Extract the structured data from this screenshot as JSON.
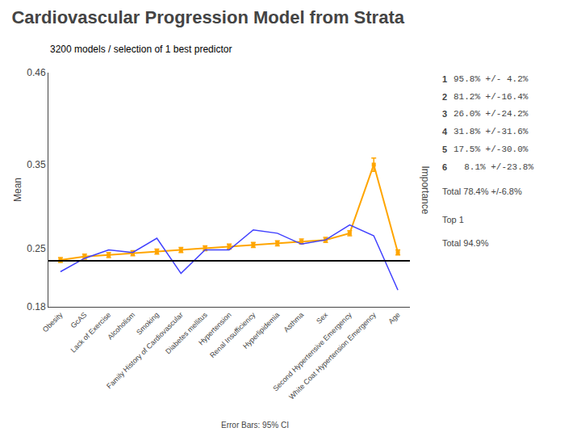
{
  "chart_data": {
    "type": "line",
    "title": "Cardiovascular Progression Model from Strata",
    "subtitle": "3200 models / selection of 1 best predictor",
    "ylabel": "Mean",
    "y2label": "Importance",
    "footnote": "Error Bars: 95% CI",
    "categories": [
      "Obesity",
      "GcAS",
      "Lack of Exercise",
      "Alcoholism",
      "Smoking",
      "Family History of Cardiovascular",
      "Diabetes mellitus",
      "Hypertension",
      "Renal Insufficiency",
      "Hyperlipidemia",
      "Asthma",
      "Sex",
      "Second Hypertensive Emergency",
      "White Coat Hypertension Emergency",
      "Age"
    ],
    "series": [
      {
        "color": "#FFA500",
        "marker": "square",
        "values": [
          0.236,
          0.24,
          0.242,
          0.244,
          0.246,
          0.248,
          0.25,
          0.252,
          0.254,
          0.256,
          0.258,
          0.26,
          0.268,
          0.35,
          0.245
        ],
        "errors": [
          0.003,
          0.003,
          0.003,
          0.003,
          0.003,
          0.003,
          0.003,
          0.003,
          0.003,
          0.003,
          0.003,
          0.003,
          0.003,
          0.008,
          0.003
        ]
      },
      {
        "color": "#4040FF",
        "values": [
          0.222,
          0.238,
          0.248,
          0.245,
          0.262,
          0.22,
          0.248,
          0.248,
          0.272,
          0.268,
          0.255,
          0.26,
          0.278,
          0.265,
          0.2
        ]
      }
    ],
    "hline": {
      "value": 0.235,
      "color": "#000000"
    },
    "ylim": [
      0.18,
      0.46
    ],
    "yticks": [
      0.18,
      0.25,
      0.35,
      0.46
    ],
    "grid": false,
    "annotations": [
      {
        "label": "1",
        "text": "95.8% +/- 4.2%"
      },
      {
        "label": "2",
        "text": "81.2% +/-16.4%"
      },
      {
        "label": "3",
        "text": "26.0% +/-24.2%"
      },
      {
        "label": "4",
        "text": "31.8% +/-31.6%"
      },
      {
        "label": "5",
        "text": "17.5% +/-30.0%"
      },
      {
        "label": "6",
        "text": "  8.1% +/-23.8%"
      },
      {
        "text": "Total 78.4% +/-6.8%"
      },
      {
        "text": "Top 1"
      },
      {
        "text": "Total 94.9%"
      }
    ]
  }
}
